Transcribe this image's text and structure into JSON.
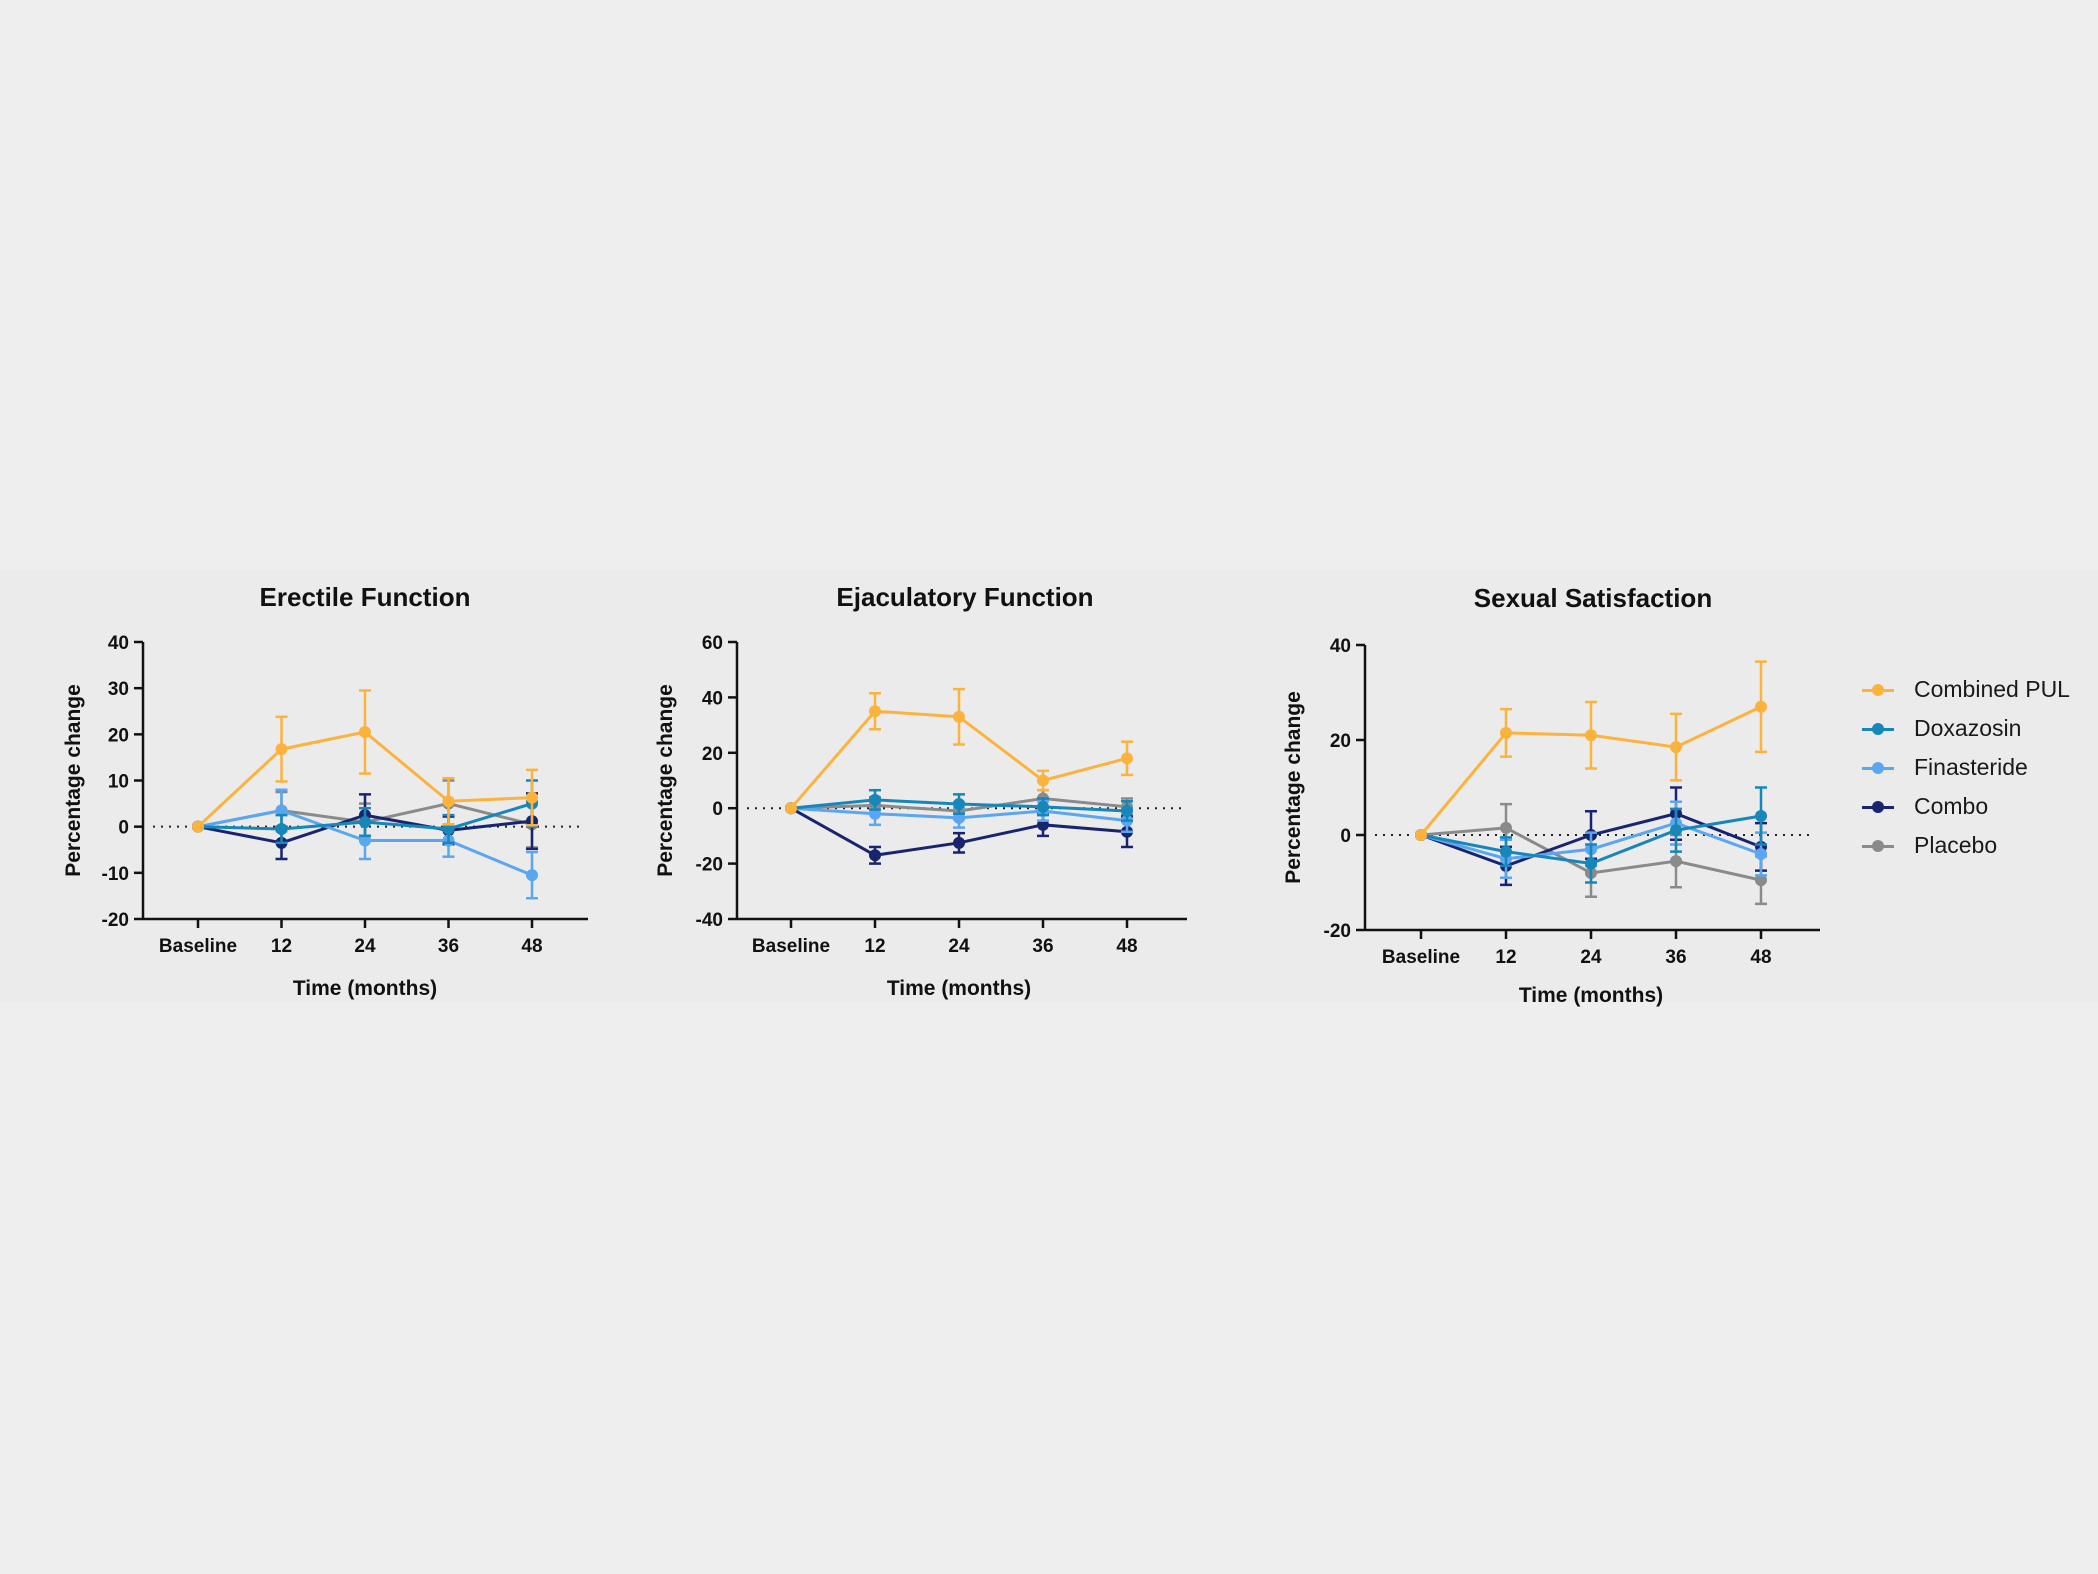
{
  "chart_data": [
    {
      "type": "line",
      "title": "Erectile Function",
      "xlabel": "Time (months)",
      "ylabel": "Percentage change",
      "categories": [
        "Baseline",
        "12",
        "24",
        "36",
        "48"
      ],
      "ylim": [
        -20,
        40
      ],
      "yticks": [
        -20,
        -10,
        0,
        10,
        20,
        30,
        40
      ],
      "reference_line": 0,
      "series": [
        {
          "name": "Combined PUL",
          "values": [
            0,
            16.8,
            20.5,
            5.5,
            6.3
          ],
          "errors": [
            0,
            7,
            9,
            5,
            6
          ]
        },
        {
          "name": "Doxazosin",
          "values": [
            0,
            -0.5,
            1.0,
            -0.5,
            5.0
          ],
          "errors": [
            0,
            3,
            3,
            3,
            5
          ]
        },
        {
          "name": "Finasteride",
          "values": [
            0,
            3.5,
            -3.0,
            -3.0,
            -10.5
          ],
          "errors": [
            0,
            4.5,
            4,
            3.5,
            5
          ]
        },
        {
          "name": "Combo",
          "values": [
            0,
            -3.5,
            2.5,
            -0.8,
            1.2
          ],
          "errors": [
            0,
            3.5,
            4.5,
            3,
            6
          ]
        },
        {
          "name": "Placebo",
          "values": [
            0,
            3.5,
            1.0,
            5.0,
            0.5
          ],
          "errors": [
            0,
            4,
            4,
            5,
            5
          ]
        }
      ]
    },
    {
      "type": "line",
      "title": "Ejaculatory Function",
      "xlabel": "Time (months)",
      "ylabel": "Percentage change",
      "categories": [
        "Baseline",
        "12",
        "24",
        "36",
        "48"
      ],
      "ylim": [
        -40,
        60
      ],
      "yticks": [
        -40,
        -20,
        0,
        20,
        40,
        60
      ],
      "reference_line": 0,
      "series": [
        {
          "name": "Combined PUL",
          "values": [
            0,
            35.0,
            33.0,
            10.0,
            18.0
          ],
          "errors": [
            0,
            6.5,
            10,
            3.5,
            6
          ]
        },
        {
          "name": "Doxazosin",
          "values": [
            0,
            3.0,
            1.5,
            0.5,
            -1.0
          ],
          "errors": [
            0,
            3.5,
            3.5,
            3,
            3.5
          ]
        },
        {
          "name": "Finasteride",
          "values": [
            0,
            -2.0,
            -3.5,
            -1.0,
            -4.5
          ],
          "errors": [
            0,
            4,
            3.5,
            3.5,
            4
          ]
        },
        {
          "name": "Combo",
          "values": [
            0,
            -17.0,
            -12.5,
            -6.0,
            -8.5
          ],
          "errors": [
            0,
            3,
            3.5,
            4,
            5.5
          ]
        },
        {
          "name": "Placebo",
          "values": [
            0,
            1.0,
            -1.0,
            3.5,
            0.5
          ],
          "errors": [
            0,
            3,
            3,
            3,
            3
          ]
        }
      ]
    },
    {
      "type": "line",
      "title": "Sexual Satisfaction",
      "xlabel": "Time (months)",
      "ylabel": "Percentage change",
      "categories": [
        "Baseline",
        "12",
        "24",
        "36",
        "48"
      ],
      "ylim": [
        -20,
        40
      ],
      "yticks": [
        -20,
        0,
        20,
        40
      ],
      "reference_line": 0,
      "series": [
        {
          "name": "Combined PUL",
          "values": [
            0,
            21.5,
            21.0,
            18.5,
            27.0
          ],
          "errors": [
            0,
            5,
            7,
            7,
            9.5
          ]
        },
        {
          "name": "Doxazosin",
          "values": [
            0,
            -3.5,
            -6.0,
            1.0,
            4.0
          ],
          "errors": [
            0,
            3,
            4,
            4.5,
            6
          ]
        },
        {
          "name": "Finasteride",
          "values": [
            0,
            -5.0,
            -3.0,
            2.5,
            -4.0
          ],
          "errors": [
            0,
            4,
            3.5,
            4.5,
            4.5
          ]
        },
        {
          "name": "Combo",
          "values": [
            0,
            -6.5,
            0.0,
            4.5,
            -2.5
          ],
          "errors": [
            0,
            4,
            5,
            5.5,
            5
          ]
        },
        {
          "name": "Placebo",
          "values": [
            0,
            1.5,
            -8.0,
            -5.5,
            -9.5
          ],
          "errors": [
            0,
            5,
            5,
            5.5,
            5
          ]
        }
      ]
    }
  ],
  "legend": {
    "position": "right",
    "items": [
      {
        "label": "Combined PUL",
        "color": "#fbb33e"
      },
      {
        "label": "Doxazosin",
        "color": "#1786b8"
      },
      {
        "label": "Finasteride",
        "color": "#5aa6f0"
      },
      {
        "label": "Combo",
        "color": "#18256e"
      },
      {
        "label": "Placebo",
        "color": "#8a8a8a"
      }
    ]
  }
}
